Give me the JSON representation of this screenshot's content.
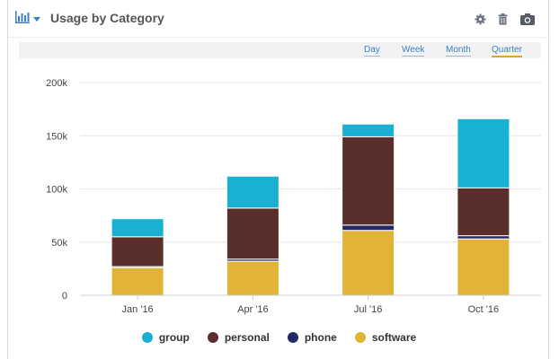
{
  "widget": {
    "title": "Usage by Category",
    "icons": [
      "bar-chart-icon",
      "chevron-down-icon",
      "gear-icon",
      "trash-icon",
      "camera-icon"
    ]
  },
  "range_tabs": [
    {
      "label": "Day",
      "active": false
    },
    {
      "label": "Week",
      "active": false
    },
    {
      "label": "Month",
      "active": false
    },
    {
      "label": "Quarter",
      "active": true
    }
  ],
  "colors": {
    "group": "#1ab0d2",
    "personal": "#5a2e2b",
    "phone": "#232a63",
    "software": "#e2b336",
    "accent": "#3a7fc4",
    "active_underline": "#e7a227"
  },
  "chart_data": {
    "type": "bar",
    "stacked": true,
    "categories": [
      "Jan '16",
      "Apr '16",
      "Jul '16",
      "Oct '16"
    ],
    "series": [
      {
        "name": "software",
        "values": [
          26000,
          32000,
          61000,
          53000
        ]
      },
      {
        "name": "phone",
        "values": [
          1000,
          2000,
          5000,
          3000
        ]
      },
      {
        "name": "personal",
        "values": [
          28000,
          48000,
          83000,
          45000
        ]
      },
      {
        "name": "group",
        "values": [
          17000,
          30000,
          12000,
          65000
        ]
      }
    ],
    "legend": [
      "group",
      "personal",
      "phone",
      "software"
    ],
    "yticks": [
      "0",
      "50k",
      "100k",
      "150k",
      "200k"
    ],
    "ylim": [
      0,
      200000
    ],
    "grid": true,
    "legend_position": "bottom"
  }
}
